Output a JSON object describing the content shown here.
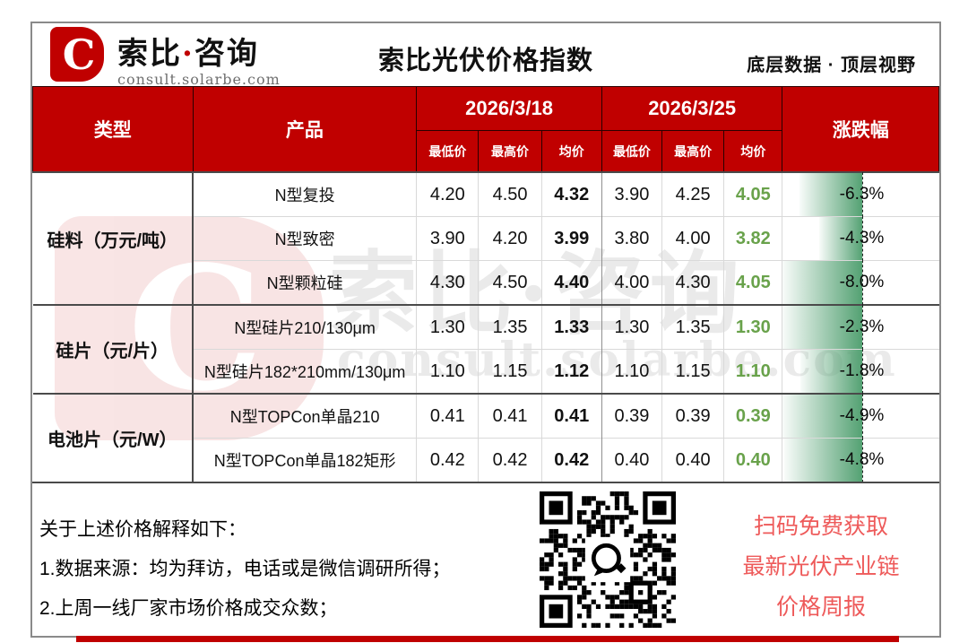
{
  "brand": {
    "logo_letter": "C",
    "logo_cn_1": "索比",
    "logo_dot": "·",
    "logo_cn_2": "咨询",
    "logo_sub": "consult.solarbe.com"
  },
  "header": {
    "title": "索比光伏价格指数",
    "slogan": "底层数据 · 顶层视野"
  },
  "watermark": {
    "cn": "索比·咨询",
    "en": "consult.solarbe.com",
    "letter": "C"
  },
  "table": {
    "col_type": "类型",
    "col_product": "产品",
    "col_change": "涨跌幅",
    "date1": "2026/3/18",
    "date2": "2026/3/25",
    "sub": [
      "最低价",
      "最高价",
      "均价"
    ]
  },
  "sections": [
    {
      "type": "硅料（万元/吨）"
    },
    {
      "type": "硅片（元/片）"
    },
    {
      "type": "电池片（元/W）"
    }
  ],
  "rows": [
    {
      "product": "N型复投",
      "d1": [
        "4.20",
        "4.50",
        "4.32"
      ],
      "d2": [
        "3.90",
        "4.25",
        "4.05"
      ],
      "change": "-6.3%",
      "bar": 0.79
    },
    {
      "product": "N型致密",
      "d1": [
        "3.90",
        "4.20",
        "3.99"
      ],
      "d2": [
        "3.80",
        "4.00",
        "3.82"
      ],
      "change": "-4.3%",
      "bar": 0.54
    },
    {
      "product": "N型颗粒硅",
      "d1": [
        "4.30",
        "4.50",
        "4.40"
      ],
      "d2": [
        "4.00",
        "4.30",
        "4.05"
      ],
      "change": "-8.0%",
      "bar": 1.0
    },
    {
      "product": "N型硅片210/130μm",
      "d1": [
        "1.30",
        "1.35",
        "1.33"
      ],
      "d2": [
        "1.30",
        "1.35",
        "1.30"
      ],
      "change": "-2.3%",
      "bar": 1.0
    },
    {
      "product": "N型硅片182*210mm/130μm",
      "d1": [
        "1.10",
        "1.15",
        "1.12"
      ],
      "d2": [
        "1.10",
        "1.15",
        "1.10"
      ],
      "change": "-1.8%",
      "bar": 0.78
    },
    {
      "product": "N型TOPCon单晶210",
      "d1": [
        "0.41",
        "0.41",
        "0.41"
      ],
      "d2": [
        "0.39",
        "0.39",
        "0.39"
      ],
      "change": "-4.9%",
      "bar": 1.0
    },
    {
      "product": "N型TOPCon单晶182矩形",
      "d1": [
        "0.42",
        "0.42",
        "0.42"
      ],
      "d2": [
        "0.40",
        "0.40",
        "0.40"
      ],
      "change": "-4.8%",
      "bar": 0.98
    }
  ],
  "footer": {
    "note_title": "关于上述价格解释如下：",
    "note_1": "1.数据来源：均为拜访，电话或是微信调研所得；",
    "note_2": "2.上周一线厂家市场价格成交众数；",
    "promo_1": "扫码免费获取",
    "promo_2": "最新光伏产业链",
    "promo_3": "价格周报"
  },
  "colors": {
    "brand_red": "#c00000",
    "avg_green": "#69a24b",
    "bar_green": "#4e9e6e",
    "promo_red": "#ee5a5a"
  }
}
